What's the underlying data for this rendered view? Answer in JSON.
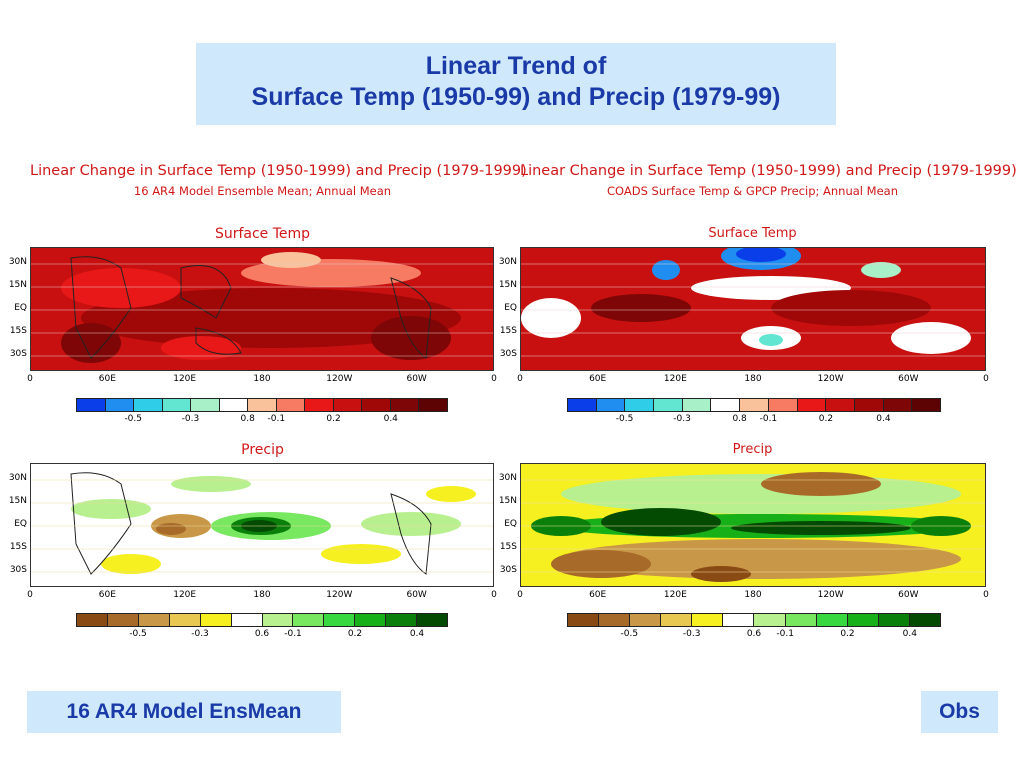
{
  "slide": {
    "title_line1": "Linear Trend of",
    "title_line2": "Surface Temp (1950-99) and Precip (1979-99)",
    "label_left": "16 AR4 Model EnsMean",
    "label_right": "Obs"
  },
  "panels": {
    "left": {
      "header1": "Linear Change in Surface Temp (1950-1999) and Precip (1979-1999)",
      "header2": "16 AR4 Model Ensemble Mean; Annual Mean"
    },
    "right": {
      "header1": "Linear Change in Surface Temp (1950-1999) and Precip (1979-1999)",
      "header2": "COADS Surface Temp & GPCP Precip; Annual Mean"
    }
  },
  "maps": {
    "temp_title": "Surface Temp",
    "precip_title": "Precip",
    "lat_labels": [
      "30N",
      "15N",
      "EQ",
      "15S",
      "30S"
    ],
    "lon_labels": [
      "0",
      "60E",
      "120E",
      "180",
      "120W",
      "60W",
      "0"
    ]
  },
  "colorbars": {
    "temp": {
      "colors": [
        "#0a3ee8",
        "#1f8ef0",
        "#2fcde8",
        "#62e6d2",
        "#a8f0c8",
        "#ffffff",
        "#f9c29a",
        "#f77b62",
        "#e81818",
        "#c81010",
        "#a00808",
        "#7e0606",
        "#5e0303"
      ],
      "labels": [
        "-0.5",
        "-0.3",
        "-0.1",
        "0.2",
        "0.4",
        "0.8"
      ]
    },
    "precip": {
      "colors": [
        "#8a4a14",
        "#a86a28",
        "#c89848",
        "#e8c850",
        "#f6f020",
        "#ffffff",
        "#b8f090",
        "#78e860",
        "#38d840",
        "#18b018",
        "#0a800a",
        "#034a03"
      ],
      "labels": [
        "-0.5",
        "-0.3",
        "-0.1",
        "0.2",
        "0.4",
        "0.6"
      ]
    }
  }
}
